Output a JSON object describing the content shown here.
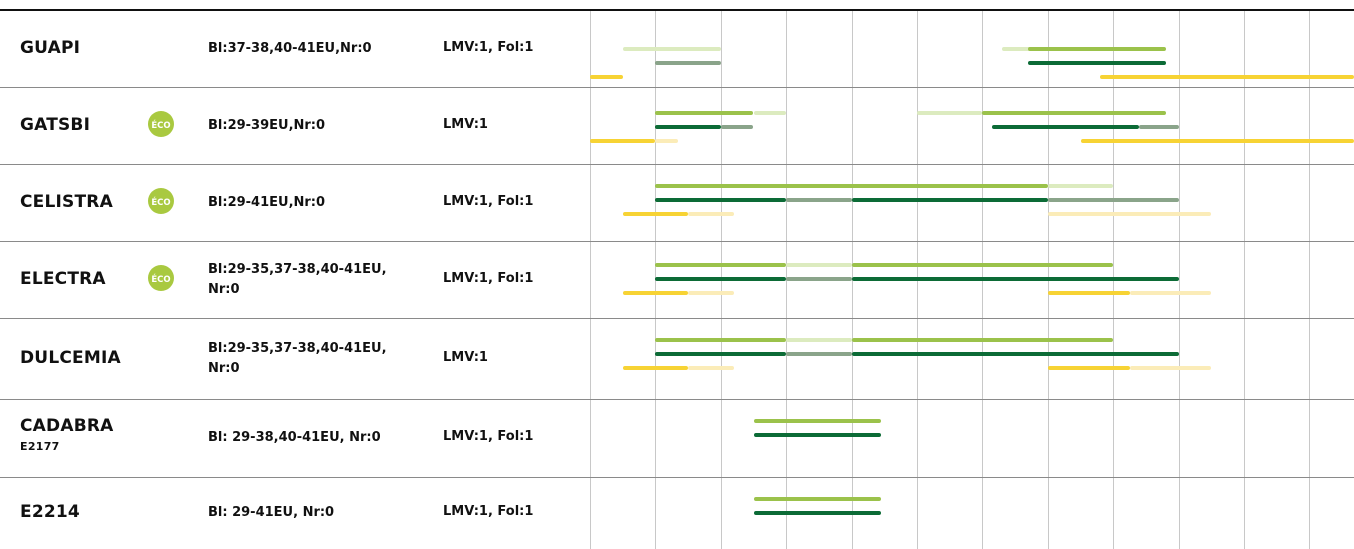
{
  "colors": {
    "light_green": "#9bc24b",
    "pale_green": "#dcebbf",
    "dark_green": "#0c6b36",
    "gray_green": "#8aa48a",
    "yellow": "#f7d334",
    "pale_yellow": "#fbecb8",
    "eco_badge": "#a9c940"
  },
  "rows": [
    {
      "name": "GUAPI",
      "sub": "",
      "eco": false,
      "eco_label": "",
      "bl": "Bl:37-38,40-41EU,Nr:0",
      "lmv": "LMV:1, Fol:1",
      "bars": [
        {
          "lane": 0,
          "from": 0.5,
          "to": 2.0,
          "tone": "pale_green"
        },
        {
          "lane": 0,
          "from": 6.3,
          "to": 7.0,
          "tone": "pale_green"
        },
        {
          "lane": 0,
          "from": 6.7,
          "to": 8.8,
          "tone": "light_green"
        },
        {
          "lane": 1,
          "from": 1.0,
          "to": 2.0,
          "tone": "gray_green"
        },
        {
          "lane": 1,
          "from": 6.7,
          "to": 8.8,
          "tone": "dark_green"
        },
        {
          "lane": 2,
          "from": 0.0,
          "to": 0.5,
          "tone": "yellow"
        },
        {
          "lane": 2,
          "from": 7.8,
          "to": 11.8,
          "tone": "yellow"
        }
      ]
    },
    {
      "name": "GATSBI",
      "sub": "",
      "eco": true,
      "eco_label": "ÉCO",
      "bl": "Bl:29-39EU,Nr:0",
      "lmv": "LMV:1",
      "bars": [
        {
          "lane": 0,
          "from": 1.0,
          "to": 2.5,
          "tone": "light_green"
        },
        {
          "lane": 0,
          "from": 2.5,
          "to": 3.0,
          "tone": "pale_green"
        },
        {
          "lane": 0,
          "from": 5.0,
          "to": 6.0,
          "tone": "pale_green"
        },
        {
          "lane": 0,
          "from": 6.0,
          "to": 8.8,
          "tone": "light_green"
        },
        {
          "lane": 1,
          "from": 1.0,
          "to": 2.0,
          "tone": "dark_green"
        },
        {
          "lane": 1,
          "from": 2.0,
          "to": 2.5,
          "tone": "gray_green"
        },
        {
          "lane": 1,
          "from": 6.15,
          "to": 8.4,
          "tone": "dark_green"
        },
        {
          "lane": 1,
          "from": 8.4,
          "to": 9.0,
          "tone": "gray_green"
        },
        {
          "lane": 2,
          "from": 0.0,
          "to": 1.0,
          "tone": "yellow"
        },
        {
          "lane": 2,
          "from": 1.0,
          "to": 1.35,
          "tone": "pale_yellow"
        },
        {
          "lane": 2,
          "from": 7.5,
          "to": 11.8,
          "tone": "yellow"
        }
      ]
    },
    {
      "name": "CELISTRA",
      "sub": "",
      "eco": true,
      "eco_label": "ÉCO",
      "bl": "Bl:29-41EU,Nr:0",
      "lmv": "LMV:1, Fol:1",
      "bars": [
        {
          "lane": 0,
          "from": 1.0,
          "to": 7.0,
          "tone": "light_green"
        },
        {
          "lane": 0,
          "from": 7.0,
          "to": 8.0,
          "tone": "pale_green"
        },
        {
          "lane": 1,
          "from": 1.0,
          "to": 3.0,
          "tone": "dark_green"
        },
        {
          "lane": 1,
          "from": 3.0,
          "to": 4.0,
          "tone": "gray_green"
        },
        {
          "lane": 1,
          "from": 4.0,
          "to": 7.0,
          "tone": "dark_green"
        },
        {
          "lane": 1,
          "from": 7.0,
          "to": 9.0,
          "tone": "gray_green"
        },
        {
          "lane": 2,
          "from": 0.5,
          "to": 1.5,
          "tone": "yellow"
        },
        {
          "lane": 2,
          "from": 1.5,
          "to": 2.2,
          "tone": "pale_yellow"
        },
        {
          "lane": 2,
          "from": 7.0,
          "to": 9.5,
          "tone": "pale_yellow"
        }
      ]
    },
    {
      "name": "ELECTRA",
      "sub": "",
      "eco": true,
      "eco_label": "ÉCO",
      "bl": "Bl:29-35,37-38,40-41EU,\nNr:0",
      "lmv": "LMV:1, Fol:1",
      "bars": [
        {
          "lane": 0,
          "from": 1.0,
          "to": 3.0,
          "tone": "light_green"
        },
        {
          "lane": 0,
          "from": 3.0,
          "to": 4.0,
          "tone": "pale_green"
        },
        {
          "lane": 0,
          "from": 4.0,
          "to": 8.0,
          "tone": "light_green"
        },
        {
          "lane": 1,
          "from": 1.0,
          "to": 3.0,
          "tone": "dark_green"
        },
        {
          "lane": 1,
          "from": 3.0,
          "to": 4.0,
          "tone": "gray_green"
        },
        {
          "lane": 1,
          "from": 4.0,
          "to": 9.0,
          "tone": "dark_green"
        },
        {
          "lane": 2,
          "from": 0.5,
          "to": 1.5,
          "tone": "yellow"
        },
        {
          "lane": 2,
          "from": 1.5,
          "to": 2.2,
          "tone": "pale_yellow"
        },
        {
          "lane": 2,
          "from": 7.0,
          "to": 8.25,
          "tone": "yellow"
        },
        {
          "lane": 2,
          "from": 8.25,
          "to": 9.5,
          "tone": "pale_yellow"
        }
      ]
    },
    {
      "name": "DULCEMIA",
      "sub": "",
      "eco": false,
      "eco_label": "",
      "bl": "Bl:29-35,37-38,40-41EU,\nNr:0",
      "lmv": "LMV:1",
      "bars": [
        {
          "lane": 0,
          "from": 1.0,
          "to": 3.0,
          "tone": "light_green"
        },
        {
          "lane": 0,
          "from": 3.0,
          "to": 4.0,
          "tone": "pale_green"
        },
        {
          "lane": 0,
          "from": 4.0,
          "to": 8.0,
          "tone": "light_green"
        },
        {
          "lane": 1,
          "from": 1.0,
          "to": 3.0,
          "tone": "dark_green"
        },
        {
          "lane": 1,
          "from": 3.0,
          "to": 4.0,
          "tone": "gray_green"
        },
        {
          "lane": 1,
          "from": 4.0,
          "to": 9.0,
          "tone": "dark_green"
        },
        {
          "lane": 2,
          "from": 0.5,
          "to": 1.5,
          "tone": "yellow"
        },
        {
          "lane": 2,
          "from": 1.5,
          "to": 2.2,
          "tone": "pale_yellow"
        },
        {
          "lane": 2,
          "from": 7.0,
          "to": 8.25,
          "tone": "yellow"
        },
        {
          "lane": 2,
          "from": 8.25,
          "to": 9.5,
          "tone": "pale_yellow"
        }
      ]
    },
    {
      "name": "CADABRA",
      "sub": "E2177",
      "eco": false,
      "eco_label": "",
      "bl": "Bl: 29-38,40-41EU, Nr:0",
      "lmv": "LMV:1, Fol:1",
      "bars": [
        {
          "lane": 0,
          "from": 2.5,
          "to": 4.45,
          "tone": "light_green"
        },
        {
          "lane": 1,
          "from": 2.5,
          "to": 4.45,
          "tone": "dark_green"
        }
      ]
    },
    {
      "name": "E2214",
      "sub": "",
      "eco": false,
      "eco_label": "",
      "bl": "Bl: 29-41EU, Nr:0",
      "lmv": "LMV:1, Fol:1",
      "bars": [
        {
          "lane": 0,
          "from": 2.5,
          "to": 4.45,
          "tone": "light_green"
        },
        {
          "lane": 1,
          "from": 2.5,
          "to": 4.45,
          "tone": "dark_green"
        }
      ]
    }
  ]
}
